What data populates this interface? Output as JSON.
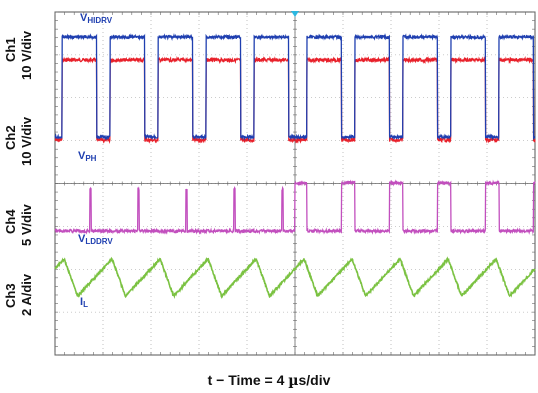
{
  "chart_data": {
    "type": "line",
    "xlabel_prefix": "t − Time = 4 ",
    "xlabel_mu": "µ",
    "xlabel_suffix": "s/div",
    "x_unit": "µs",
    "x_per_div": 4,
    "x_divisions": 10,
    "grid": true,
    "channels": [
      {
        "id": "Ch1",
        "label": "Ch1",
        "scale": "10 V/div",
        "signal_main": "V",
        "signal_sub": "HIDRV",
        "color": "#1f3fb0"
      },
      {
        "id": "Ch2",
        "label": "Ch2",
        "scale": "10 V/div",
        "signal_main": "V",
        "signal_sub": "PH",
        "color": "#e8202a"
      },
      {
        "id": "Ch4",
        "label": "Ch4",
        "scale": "5 V/div",
        "signal_main": "V",
        "signal_sub": "LDDRV",
        "color": "#c24fbe"
      },
      {
        "id": "Ch3",
        "label": "Ch3",
        "scale": "2 A/div",
        "signal_main": "I",
        "signal_sub": "L",
        "color": "#7bc242"
      }
    ],
    "series": [
      {
        "name": "VHIDRV",
        "channel": "Ch1",
        "period_us": 4.0,
        "duty": 0.72,
        "first_rise_us": 0.6,
        "phase_shift_at_us": 20.0,
        "phase_shift_us": 0.4
      },
      {
        "name": "VPH",
        "channel": "Ch2",
        "period_us": 4.0,
        "duty": 0.72,
        "first_rise_us": 0.6,
        "phase_shift_at_us": 20.0,
        "phase_shift_us": 0.4
      },
      {
        "name": "VLDDRV",
        "channel": "Ch4",
        "mode_before_us": "spikes",
        "mode_after_us": "pulses",
        "mode_switch_us": 20.0,
        "period_us": 4.0,
        "duty": 0.28
      },
      {
        "name": "IL",
        "channel": "Ch3",
        "waveform": "triangle",
        "period_us": 4.0,
        "peak_first_us": 3.0
      }
    ]
  }
}
